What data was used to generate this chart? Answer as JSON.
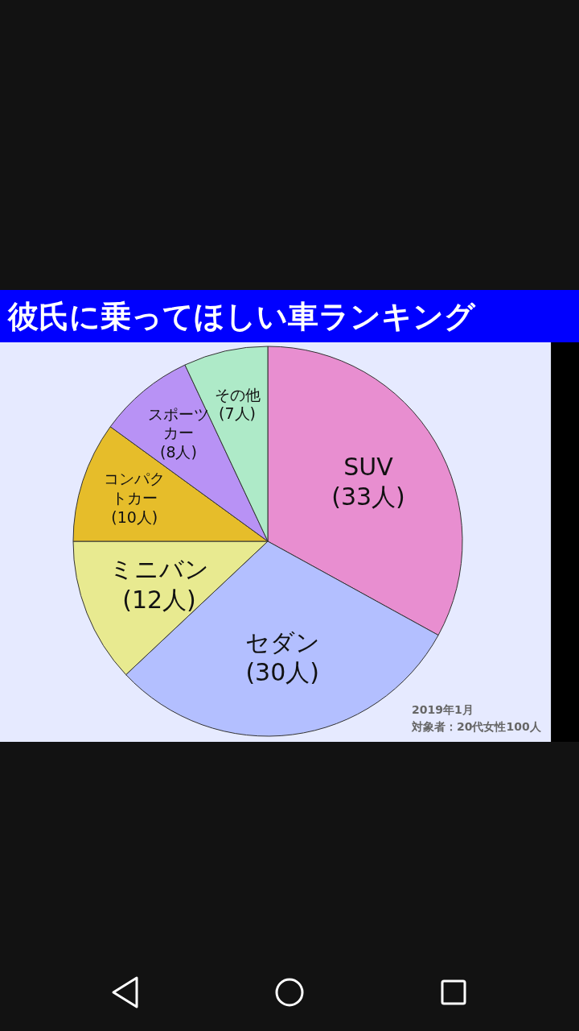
{
  "chart_data": {
    "type": "pie",
    "title": "彼氏に乗ってほしい車ランキング",
    "categories": [
      "SUV",
      "セダン",
      "ミニバン",
      "コンパクトカー",
      "スポーツカー",
      "その他"
    ],
    "values": [
      33,
      30,
      12,
      10,
      8,
      7
    ],
    "value_labels": [
      "(33人)",
      "(30人)",
      "(12人)",
      "(10人)",
      "(8人)",
      "(7人)"
    ],
    "colors": [
      "#e88ed0",
      "#b3bfff",
      "#e8ea90",
      "#e6bd2a",
      "#b892f5",
      "#aeeac8"
    ],
    "annotations": [
      "2019年1月",
      "対象者：20代女性100人"
    ]
  }
}
